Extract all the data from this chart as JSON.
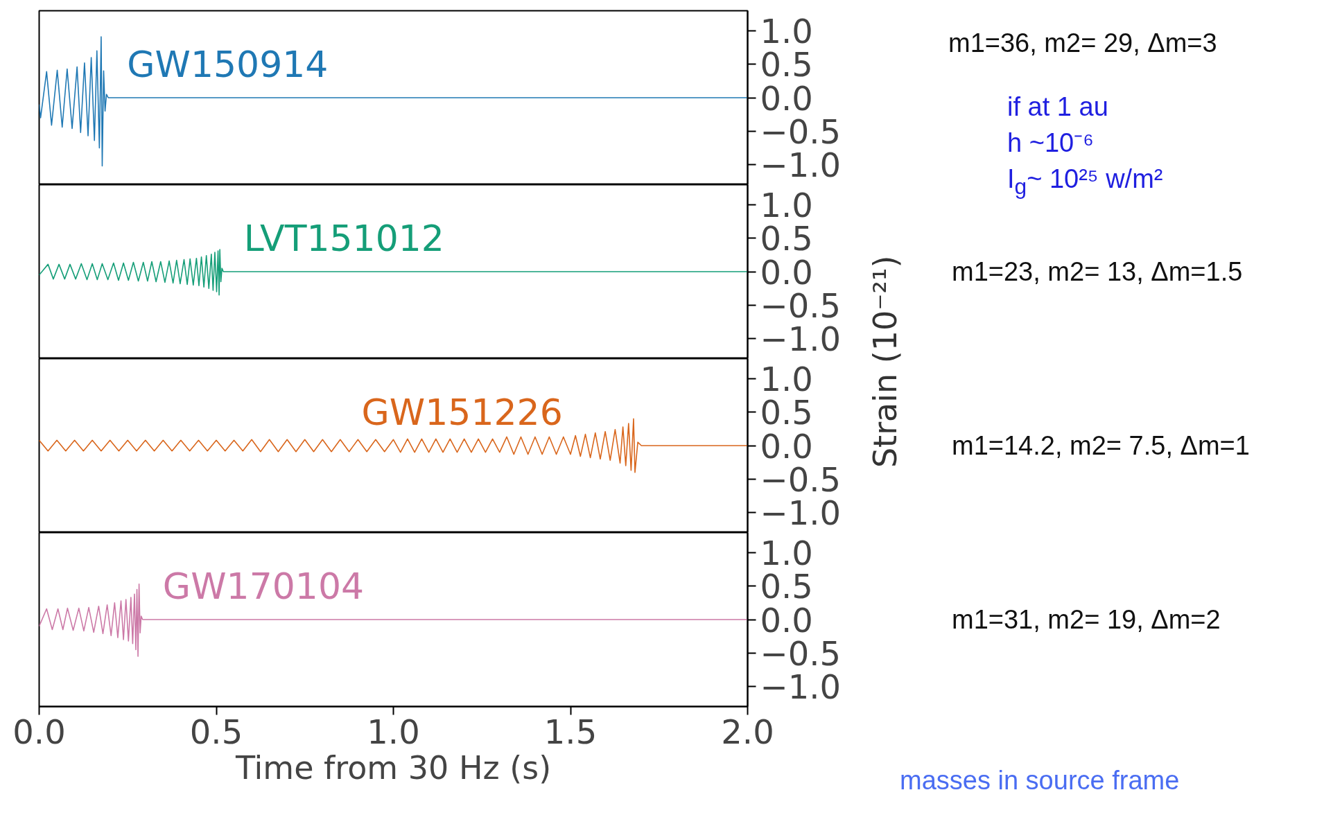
{
  "chart_data": [
    {
      "type": "line",
      "tick_labels": "y",
      "series": [
        {
          "name": "GW150914",
          "color": "#1f78b4",
          "x": [
            0,
            0.004,
            0.021,
            0.035,
            0.051,
            0.065,
            0.079,
            0.093,
            0.107,
            0.117,
            0.128,
            0.138,
            0.147,
            0.156,
            0.163,
            0.17,
            0.175,
            0.178,
            0.182,
            0.186,
            0.19,
            0.195,
            2.0
          ],
          "values": [
            -0.1,
            -0.3,
            0.39,
            -0.41,
            0.41,
            -0.44,
            0.43,
            -0.46,
            0.46,
            -0.52,
            0.52,
            -0.57,
            0.6,
            -0.64,
            0.7,
            -0.75,
            0.91,
            -1.02,
            0.4,
            -0.2,
            0.05,
            0,
            0
          ]
        }
      ],
      "xlim": [
        0,
        2
      ],
      "ylim": [
        -1.3,
        1.3
      ],
      "yticks": [
        {
          "value": 1,
          "label": "1.0"
        },
        {
          "value": 0.5,
          "label": "0.5"
        },
        {
          "value": 0,
          "label": "0.0"
        },
        {
          "value": -0.5,
          "label": "−0.5"
        },
        {
          "value": -1,
          "label": "−1.0"
        }
      ],
      "annotations": [
        "m1=36, m2= 29, Δm=3",
        "if at 1 au",
        "h ~10⁻⁶",
        "I$_{g}$~ 10²⁵ w/m²"
      ]
    },
    {
      "type": "line",
      "tick_labels": "y",
      "ylabel": "Strain (10⁻²¹)",
      "series": [
        {
          "name": "LVT151012",
          "color": "#159e78",
          "x": [
            0,
            0.025,
            0.04,
            0.056,
            0.072,
            0.087,
            0.103,
            0.119,
            0.135,
            0.15,
            0.164,
            0.178,
            0.194,
            0.21,
            0.224,
            0.238,
            0.252,
            0.266,
            0.28,
            0.294,
            0.306,
            0.318,
            0.33,
            0.343,
            0.355,
            0.367,
            0.378,
            0.388,
            0.398,
            0.409,
            0.418,
            0.426,
            0.435,
            0.444,
            0.451,
            0.458,
            0.465,
            0.472,
            0.479,
            0.486,
            0.491,
            0.496,
            0.501,
            0.505,
            0.508,
            0.51,
            0.513,
            0.516,
            0.52,
            2.0
          ],
          "values": [
            -0.05,
            0.11,
            -0.11,
            0.11,
            -0.11,
            0.11,
            -0.11,
            0.12,
            -0.12,
            0.12,
            -0.12,
            0.12,
            -0.12,
            0.13,
            -0.13,
            0.13,
            -0.13,
            0.14,
            -0.14,
            0.14,
            -0.14,
            0.15,
            -0.15,
            0.15,
            -0.16,
            0.16,
            -0.17,
            0.17,
            -0.18,
            0.18,
            -0.19,
            0.19,
            -0.2,
            0.2,
            -0.21,
            0.22,
            -0.23,
            0.24,
            -0.25,
            0.26,
            -0.28,
            0.29,
            -0.3,
            0.31,
            -0.35,
            0.33,
            -0.15,
            0.05,
            0,
            0
          ]
        }
      ],
      "xlim": [
        0,
        2
      ],
      "ylim": [
        -1.3,
        1.3
      ],
      "yticks": [
        {
          "value": 1,
          "label": "1.0"
        },
        {
          "value": 0.5,
          "label": "0.5"
        },
        {
          "value": 0,
          "label": "0.0"
        },
        {
          "value": -0.5,
          "label": "−0.5"
        },
        {
          "value": -1,
          "label": "−1.0"
        }
      ],
      "annotations": [
        "m1=23, m2= 13, Δm=1.5"
      ]
    },
    {
      "type": "line",
      "tick_labels": "y",
      "series": [
        {
          "name": "GW151226",
          "color": "#d9661c",
          "x": [
            0,
            0.025,
            0.05,
            0.075,
            0.1,
            0.125,
            0.15,
            0.175,
            0.2,
            0.225,
            0.25,
            0.275,
            0.3,
            0.325,
            0.35,
            0.375,
            0.4,
            0.425,
            0.45,
            0.475,
            0.5,
            0.525,
            0.55,
            0.575,
            0.6,
            0.625,
            0.65,
            0.675,
            0.7,
            0.725,
            0.75,
            0.775,
            0.8,
            0.825,
            0.85,
            0.875,
            0.9,
            0.925,
            0.95,
            0.975,
            1.0,
            1.02,
            1.04,
            1.06,
            1.08,
            1.1,
            1.12,
            1.14,
            1.16,
            1.18,
            1.2,
            1.22,
            1.24,
            1.26,
            1.28,
            1.3,
            1.32,
            1.34,
            1.36,
            1.38,
            1.4,
            1.42,
            1.44,
            1.46,
            1.48,
            1.5,
            1.514,
            1.528,
            1.542,
            1.556,
            1.57,
            1.584,
            1.598,
            1.612,
            1.626,
            1.64,
            1.648,
            1.656,
            1.664,
            1.671,
            1.678,
            1.682,
            1.69,
            1.7,
            2.0
          ],
          "values": [
            0.08,
            -0.08,
            0.08,
            -0.08,
            0.08,
            -0.08,
            0.08,
            -0.08,
            0.08,
            -0.08,
            0.08,
            -0.08,
            0.08,
            -0.08,
            0.08,
            -0.08,
            0.08,
            -0.08,
            0.08,
            -0.08,
            0.08,
            -0.08,
            0.08,
            -0.08,
            0.09,
            -0.09,
            0.09,
            -0.09,
            0.09,
            -0.09,
            0.09,
            -0.09,
            0.09,
            -0.09,
            0.09,
            -0.09,
            0.09,
            -0.09,
            0.09,
            -0.09,
            0.09,
            -0.1,
            0.1,
            -0.1,
            0.1,
            -0.1,
            0.1,
            -0.1,
            0.1,
            -0.1,
            0.1,
            -0.1,
            0.1,
            -0.1,
            0.1,
            -0.1,
            0.13,
            -0.13,
            0.13,
            -0.13,
            0.13,
            -0.13,
            0.13,
            -0.13,
            0.13,
            -0.13,
            0.15,
            -0.16,
            0.17,
            -0.18,
            0.19,
            -0.2,
            0.21,
            -0.22,
            0.24,
            -0.26,
            0.28,
            -0.3,
            0.33,
            -0.37,
            0.4,
            -0.4,
            0.05,
            0,
            0
          ]
        }
      ],
      "xlim": [
        0,
        2
      ],
      "ylim": [
        -1.3,
        1.3
      ],
      "yticks": [
        {
          "value": 1,
          "label": "1.0"
        },
        {
          "value": 0.5,
          "label": "0.5"
        },
        {
          "value": 0,
          "label": "0.0"
        },
        {
          "value": -0.5,
          "label": "−0.5"
        },
        {
          "value": -1,
          "label": "−1.0"
        }
      ],
      "annotations": [
        "m1=14.2, m2= 7.5, Δm=1"
      ]
    },
    {
      "type": "line",
      "xlabel": "Time from 30 Hz (s)",
      "series": [
        {
          "name": "GW170104",
          "color": "#cc79a7",
          "x": [
            0,
            0.021,
            0.037,
            0.053,
            0.067,
            0.08,
            0.096,
            0.112,
            0.126,
            0.14,
            0.154,
            0.168,
            0.18,
            0.192,
            0.203,
            0.213,
            0.222,
            0.231,
            0.238,
            0.245,
            0.252,
            0.259,
            0.264,
            0.269,
            0.273,
            0.276,
            0.279,
            0.282,
            0.285,
            0.288,
            0.292,
            2.0
          ],
          "values": [
            -0.1,
            0.16,
            -0.15,
            0.16,
            -0.15,
            0.17,
            -0.16,
            0.17,
            -0.17,
            0.18,
            -0.19,
            0.2,
            -0.21,
            0.22,
            -0.24,
            0.25,
            -0.27,
            0.28,
            -0.3,
            0.3,
            -0.32,
            0.33,
            -0.36,
            0.38,
            -0.45,
            0.45,
            -0.55,
            0.53,
            -0.2,
            0.05,
            0,
            0
          ]
        }
      ],
      "xlim": [
        0,
        2
      ],
      "xticks": [
        {
          "value": 0,
          "label": "0.0"
        },
        {
          "value": 0.5,
          "label": "0.5"
        },
        {
          "value": 1,
          "label": "1.0"
        },
        {
          "value": 1.5,
          "label": "1.5"
        },
        {
          "value": 2,
          "label": "2.0"
        }
      ],
      "ylim": [
        -1.3,
        1.3
      ],
      "yticks": [
        {
          "value": 1,
          "label": "1.0"
        },
        {
          "value": 0.5,
          "label": "0.5"
        },
        {
          "value": 0,
          "label": "0.0"
        },
        {
          "value": -0.5,
          "label": "−0.5"
        },
        {
          "value": -1,
          "label": "−1.0"
        }
      ],
      "annotations": [
        "m1=31,  m2= 19,   Δm=2",
        "masses in source frame"
      ]
    }
  ]
}
